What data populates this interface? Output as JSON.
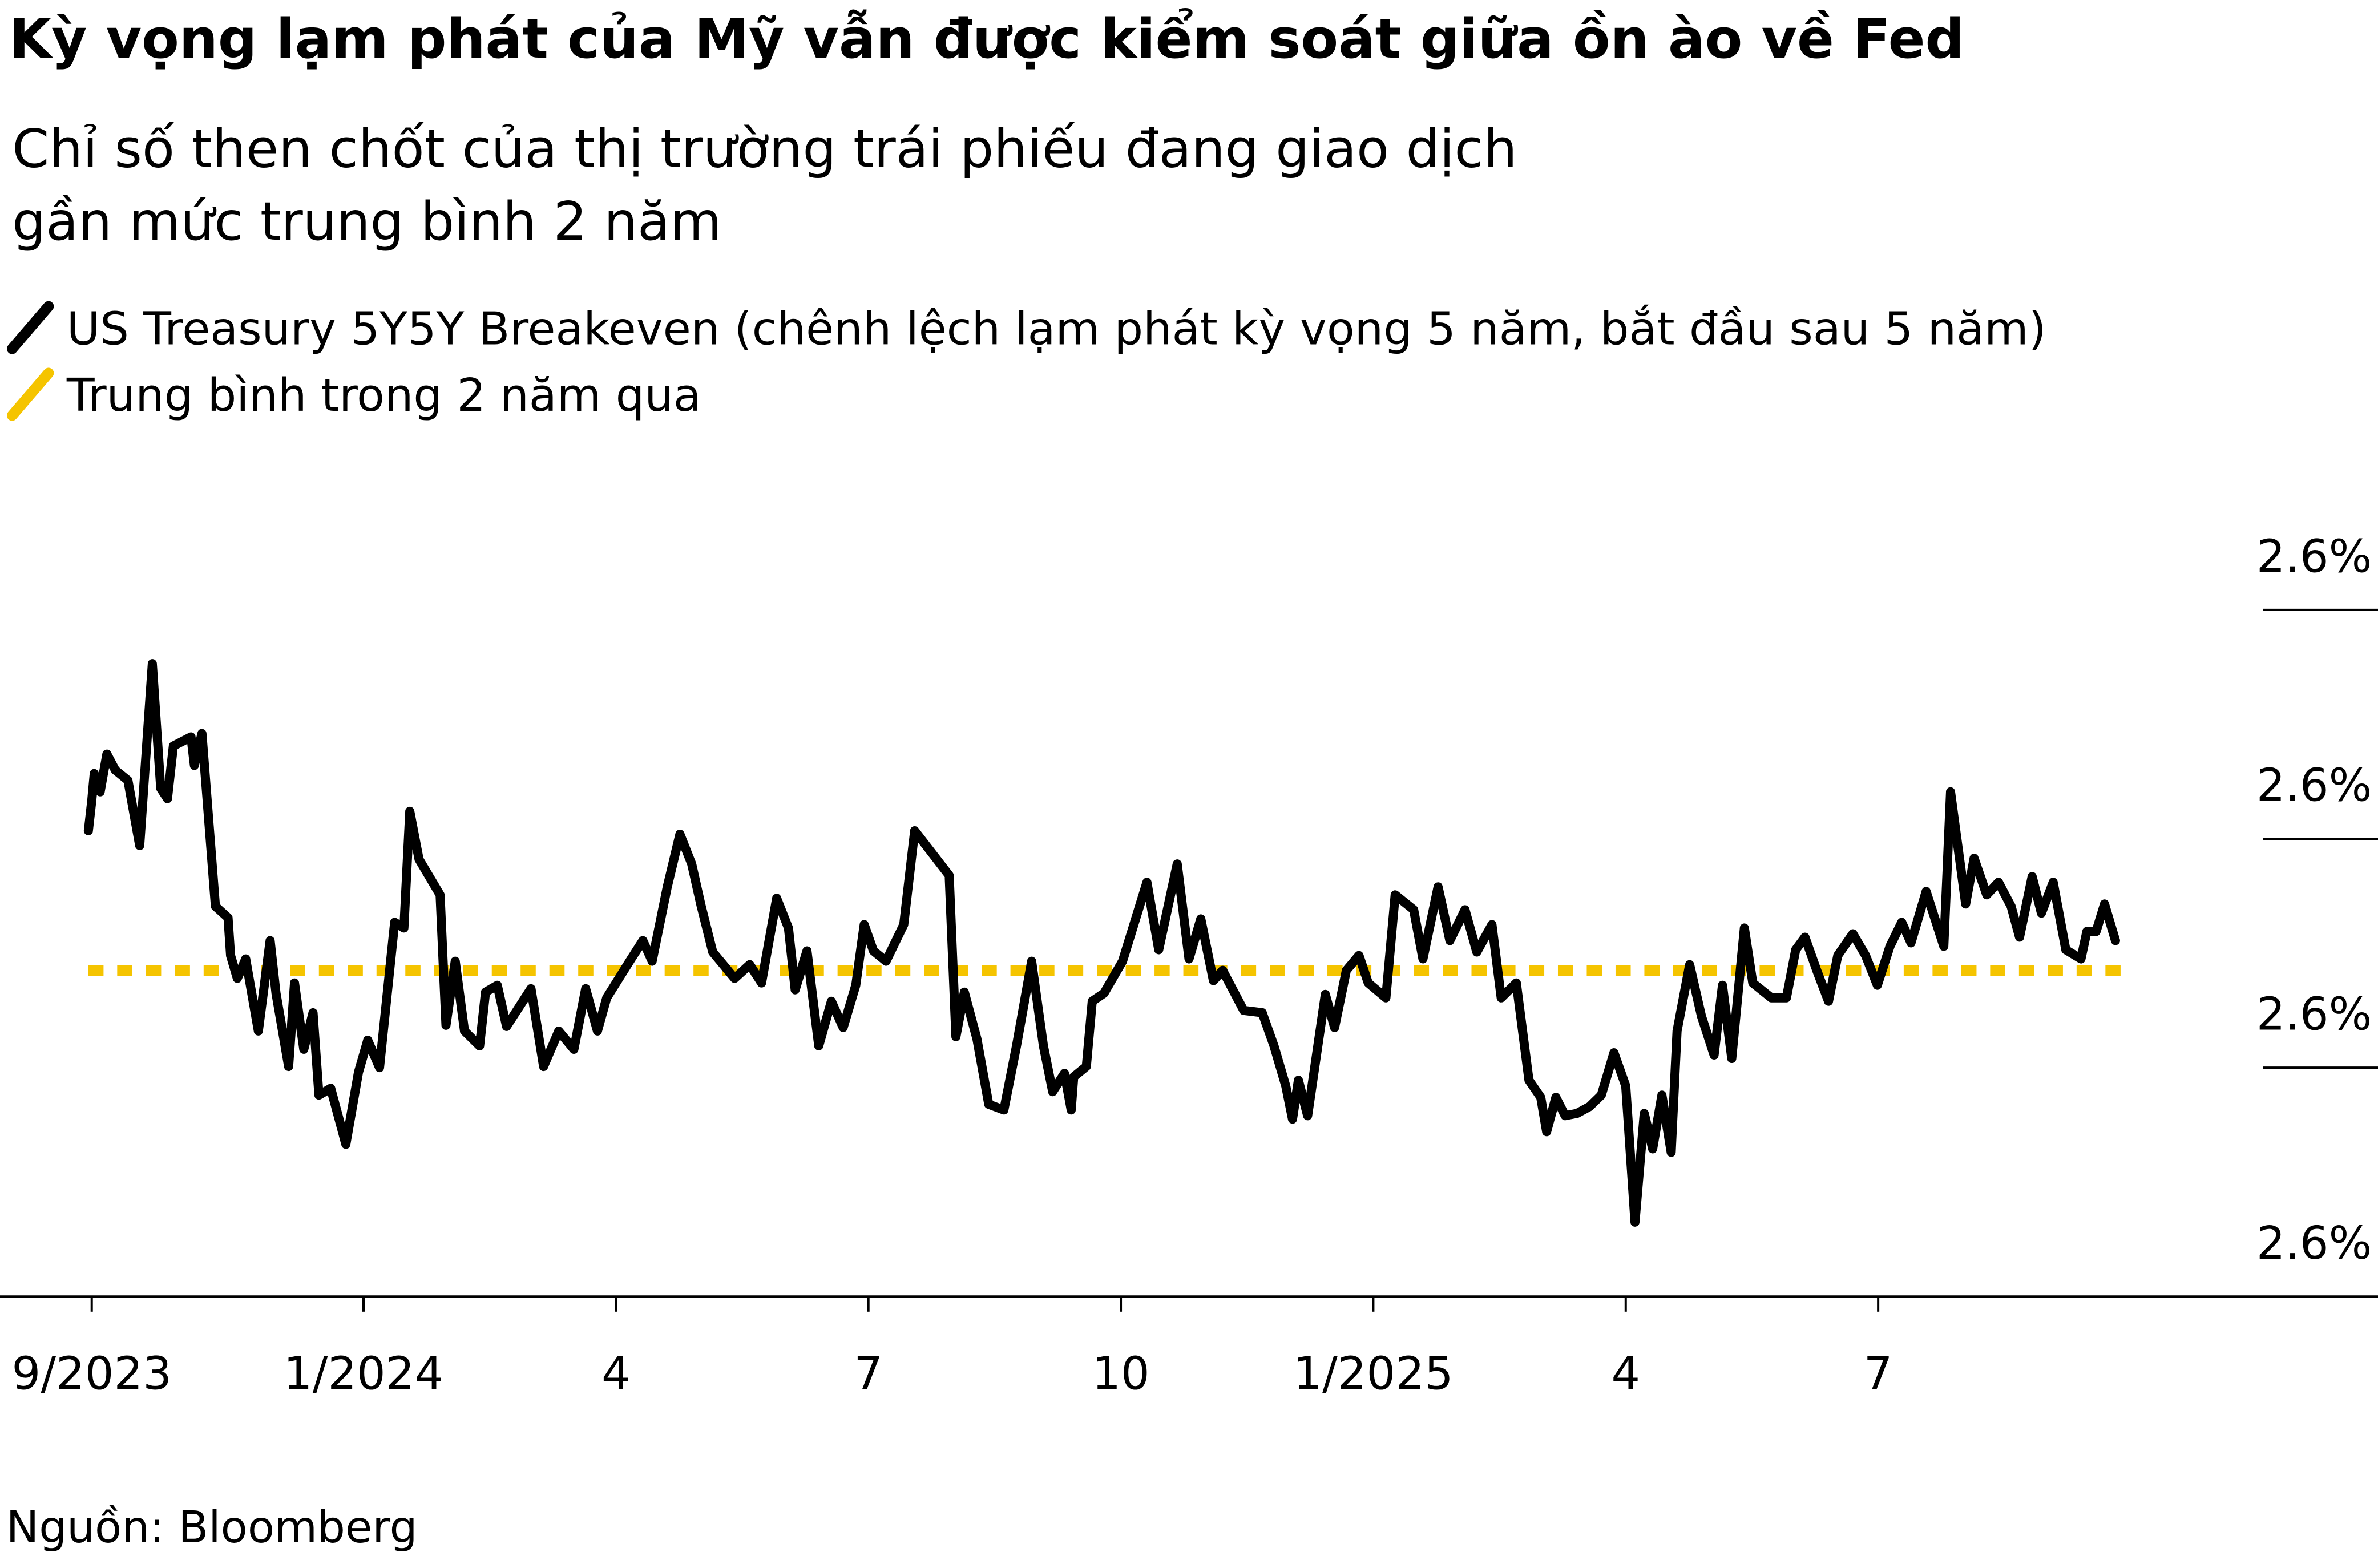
{
  "chart_data": {
    "type": "line",
    "title": "Kỳ vọng lạm phát của Mỹ vẫn được kiểm soát giữa ồn ào về Fed",
    "subtitle": [
      "Chỉ số then chốt của thị trường trái phiếu đang giao dịch",
      "gần mức trung bình 2 năm"
    ],
    "source": "Nguồn: Bloomberg",
    "xlim": [
      -0.32,
      27.94
    ],
    "xticks": [
      {
        "value": 0.77,
        "label": "9/2023"
      },
      {
        "value": 4,
        "label": "1/2024"
      },
      {
        "value": 7,
        "label": "4"
      },
      {
        "value": 10,
        "label": "7"
      },
      {
        "value": 13,
        "label": "10"
      },
      {
        "value": 16,
        "label": "1/2025"
      },
      {
        "value": 19,
        "label": "4"
      },
      {
        "value": 22,
        "label": "7"
      }
    ],
    "ylim": [
      2.56,
      2.63
    ],
    "yticks": [
      {
        "value": 2.56,
        "label": "2.6%"
      },
      {
        "value": 2.58,
        "label": "2.6%"
      },
      {
        "value": 2.6,
        "label": "2.6%"
      },
      {
        "value": 2.62,
        "label": "2.6%"
      }
    ],
    "series": [
      {
        "name": "US Treasury 5Y5Y Breakeven (chênh lệch lạm phát kỳ vọng 5 năm, bắt đầu sau 5 năm)",
        "color": "#000000",
        "x": [
          0.73,
          0.77,
          0.8,
          0.87,
          0.95,
          1.05,
          1.2,
          1.34,
          1.49,
          1.59,
          1.67,
          1.74,
          1.95,
          1.99,
          2.08,
          2.24,
          2.39,
          2.42,
          2.5,
          2.6,
          2.75,
          2.89,
          2.96,
          3.11,
          3.18,
          3.29,
          3.4,
          3.47,
          3.61,
          3.79,
          3.94,
          4.05,
          4.19,
          4.37,
          4.48,
          4.55,
          4.66,
          4.91,
          4.98,
          5.09,
          5.2,
          5.38,
          5.45,
          5.59,
          5.7,
          5.99,
          6.14,
          6.32,
          6.5,
          6.64,
          6.78,
          6.89,
          7.18,
          7.32,
          7.43,
          7.61,
          7.76,
          7.9,
          8.01,
          8.15,
          8.41,
          8.59,
          8.73,
          8.91,
          9.05,
          9.13,
          9.27,
          9.41,
          9.56,
          9.7,
          9.85,
          9.95,
          10.06,
          10.21,
          10.42,
          10.55,
          10.96,
          11.04,
          11.14,
          11.29,
          11.43,
          11.61,
          11.76,
          11.94,
          12.08,
          12.19,
          12.33,
          12.41,
          12.44,
          12.59,
          12.66,
          12.8,
          13.02,
          13.31,
          13.45,
          13.67,
          13.81,
          13.95,
          14.1,
          14.21,
          14.46,
          14.68,
          14.82,
          14.96,
          15.04,
          15.11,
          15.22,
          15.43,
          15.54,
          15.68,
          15.83,
          15.94,
          16.15,
          16.26,
          16.48,
          16.59,
          16.77,
          16.91,
          17.09,
          17.23,
          17.41,
          17.52,
          17.7,
          17.85,
          17.99,
          18.06,
          18.17,
          18.28,
          18.42,
          18.57,
          18.71,
          18.86,
          19.0,
          19.11,
          19.22,
          19.32,
          19.43,
          19.54,
          19.61,
          19.76,
          19.9,
          20.05,
          20.15,
          20.26,
          20.41,
          20.51,
          20.73,
          20.91,
          21.02,
          21.13,
          21.27,
          21.41,
          21.52,
          21.7,
          21.85,
          21.99,
          22.14,
          22.28,
          22.39,
          22.57,
          22.78,
          22.86,
          23.04,
          23.14,
          23.29,
          23.43,
          23.58,
          23.68,
          23.83,
          23.94,
          24.08,
          24.23,
          24.41,
          24.48,
          24.59,
          24.69,
          24.82
        ],
        "values": [
          2.6007,
          2.6033,
          2.6057,
          2.6041,
          2.6074,
          2.606,
          2.6051,
          2.5994,
          2.6153,
          2.6044,
          2.6035,
          2.6081,
          2.6089,
          2.6064,
          2.6092,
          2.5941,
          2.5931,
          2.5898,
          2.5878,
          2.5895,
          2.5832,
          2.5911,
          2.5865,
          2.5801,
          2.5874,
          2.5816,
          2.5848,
          2.5776,
          2.5782,
          2.5733,
          2.5796,
          2.5824,
          2.58,
          2.5927,
          2.5922,
          2.6024,
          2.5982,
          2.5951,
          2.5837,
          2.5893,
          2.5832,
          2.5819,
          2.5866,
          2.5872,
          2.5836,
          2.5869,
          2.5801,
          2.5832,
          2.5816,
          2.5869,
          2.5832,
          2.5861,
          2.5895,
          2.5911,
          2.5893,
          2.5958,
          2.6004,
          2.5978,
          2.5942,
          2.5901,
          2.5878,
          2.589,
          2.5874,
          2.5948,
          2.5922,
          2.5868,
          2.5902,
          2.5819,
          2.5858,
          2.5835,
          2.5872,
          2.5925,
          2.5902,
          2.5893,
          2.5925,
          2.6007,
          2.5968,
          2.5827,
          2.5866,
          2.5825,
          2.5768,
          2.5763,
          2.5819,
          2.5893,
          2.5819,
          2.5779,
          2.5795,
          2.5763,
          2.5792,
          2.5801,
          2.5858,
          2.5865,
          2.5893,
          2.5962,
          2.5903,
          2.5978,
          2.5895,
          2.593,
          2.5876,
          2.5885,
          2.585,
          2.5848,
          2.5819,
          2.5784,
          2.5755,
          2.5789,
          2.5758,
          2.5864,
          2.5835,
          2.5885,
          2.5898,
          2.5874,
          2.5861,
          2.5951,
          2.5938,
          2.5895,
          2.5958,
          2.5911,
          2.5938,
          2.5901,
          2.5925,
          2.5861,
          2.5874,
          2.5789,
          2.5774,
          2.5744,
          2.5774,
          2.5758,
          2.576,
          2.5766,
          2.5776,
          2.5813,
          2.5784,
          2.5665,
          2.576,
          2.5729,
          2.5776,
          2.5726,
          2.5832,
          2.589,
          2.5845,
          2.5811,
          2.5872,
          2.5808,
          2.5922,
          2.5874,
          2.5861,
          2.5861,
          2.5903,
          2.5914,
          2.5885,
          2.5858,
          2.5898,
          2.5917,
          2.5898,
          2.5872,
          2.5906,
          2.5927,
          2.5909,
          2.5954,
          2.5906,
          2.6041,
          2.5943,
          2.5983,
          2.5951,
          2.5962,
          2.5941,
          2.5914,
          2.5967,
          2.5935,
          2.5962,
          2.5903,
          2.5895,
          2.5919,
          2.5919,
          2.5943,
          2.5911
        ]
      },
      {
        "name": "Trung bình trong 2 năm qua",
        "color": "#f5c400",
        "dashed": true,
        "x": [
          0.73,
          24.95
        ],
        "values": [
          2.5885,
          2.5885
        ]
      }
    ]
  }
}
